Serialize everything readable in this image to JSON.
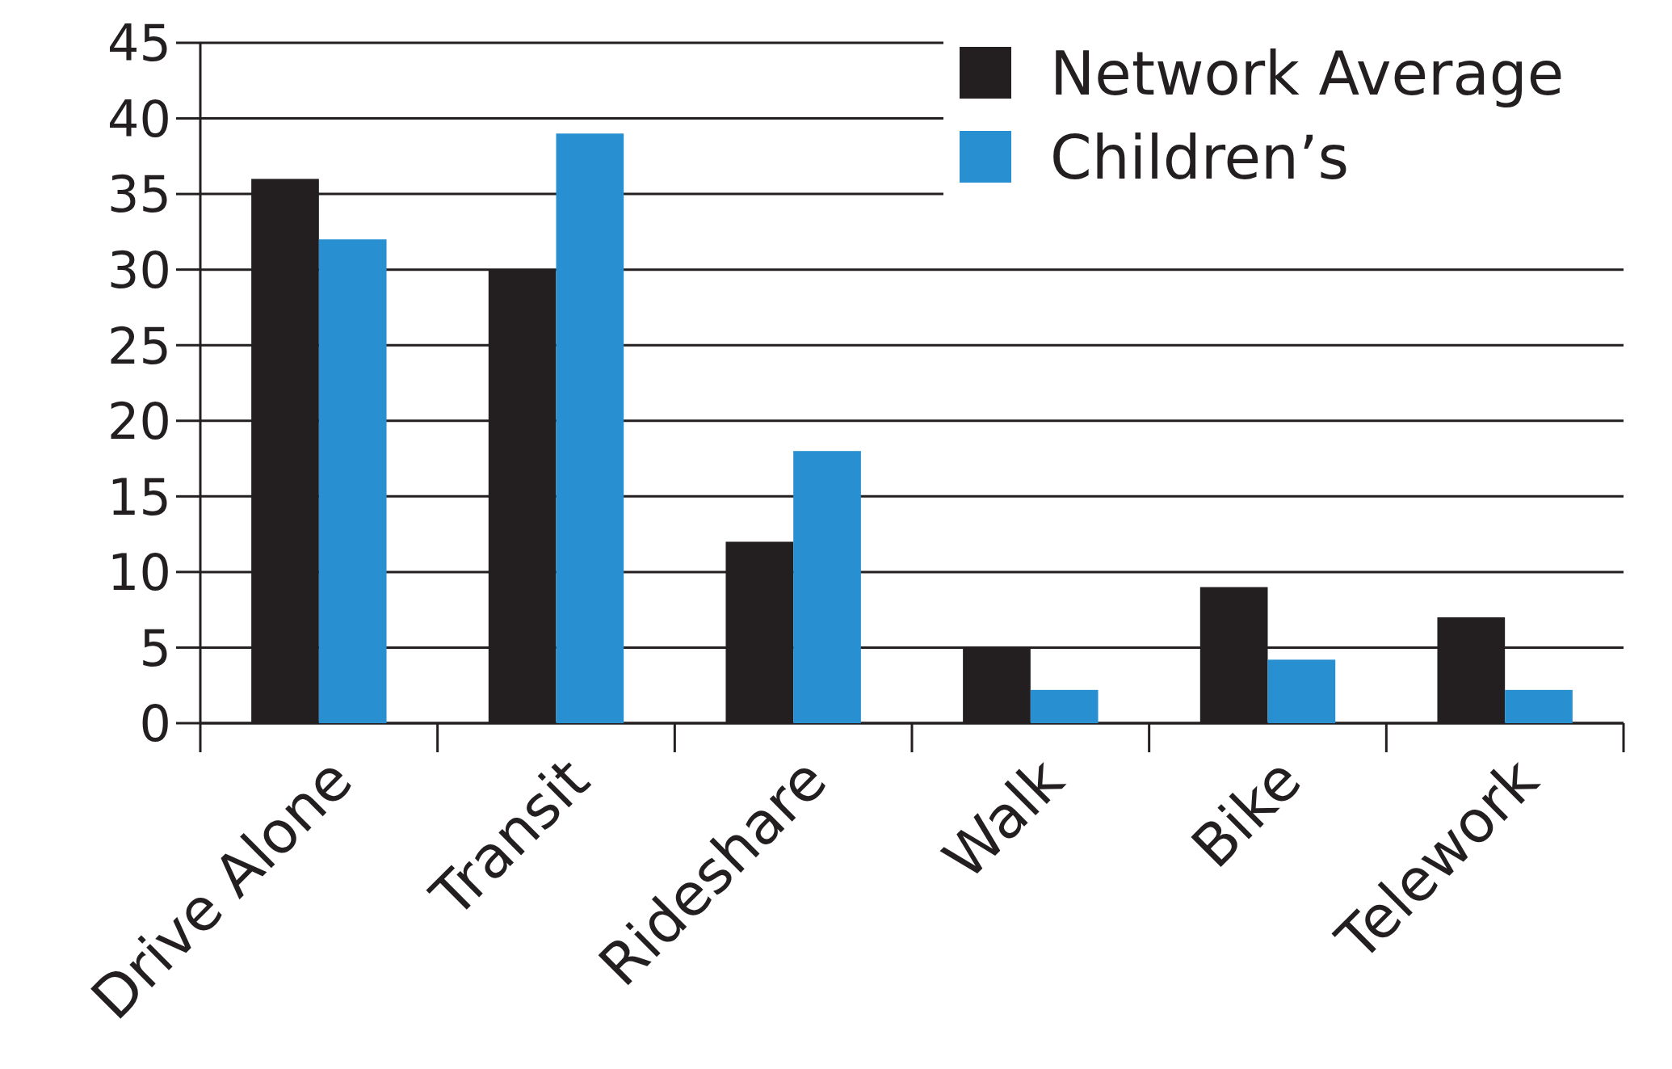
{
  "chart_data": {
    "type": "bar",
    "categories": [
      "Drive Alone",
      "Transit",
      "Rideshare",
      "Walk",
      "Bike",
      "Telework"
    ],
    "series": [
      {
        "name": "Network Average",
        "color": "#231f20",
        "values": [
          36,
          30,
          12,
          5,
          9,
          7
        ]
      },
      {
        "name": "Children’s",
        "color": "#2890d0",
        "values": [
          32,
          39,
          18,
          2.2,
          4.2,
          2.2
        ]
      }
    ],
    "ylim": [
      0,
      45
    ],
    "yticks": [
      0,
      5,
      10,
      15,
      20,
      25,
      30,
      35,
      40,
      45
    ],
    "grid": "y",
    "legend": "top right"
  }
}
